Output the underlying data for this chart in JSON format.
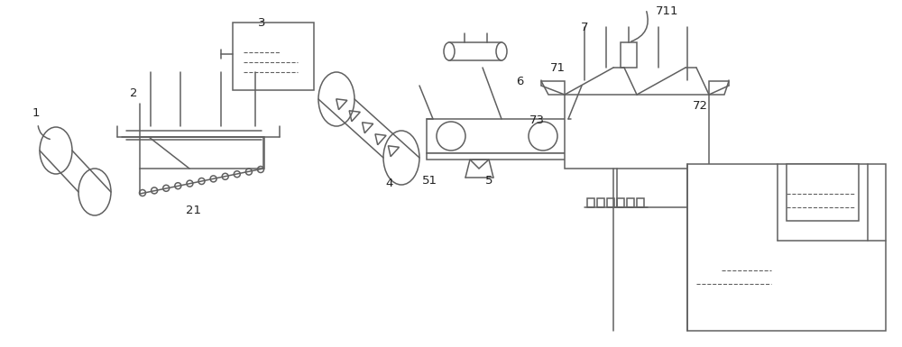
{
  "bg_color": "#ffffff",
  "line_color": "#606060",
  "label_color": "#222222",
  "figsize": [
    10.0,
    3.85
  ],
  "dpi": 100
}
